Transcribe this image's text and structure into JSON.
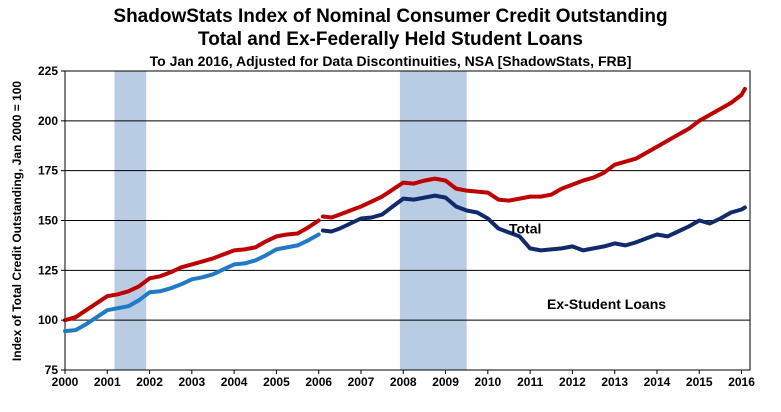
{
  "chart_data": {
    "type": "line",
    "title": "ShadowStats Index of Nominal Consumer Credit Outstanding",
    "subtitle": "Total and Ex-Federally Held Student Loans",
    "subtitle2": "To Jan 2016, Adjusted for Data Discontinuities, NSA [ShadowStats, FRB]",
    "ylabel": "Index of Total Credit Outstanding, Jan 2000 = 100",
    "xlabel": "",
    "xlim": [
      2000,
      2016.2
    ],
    "ylim": [
      75,
      225
    ],
    "yticks": [
      75,
      100,
      125,
      150,
      175,
      200,
      225
    ],
    "xticks": [
      "2000",
      "2001",
      "2002",
      "2003",
      "2004",
      "2005",
      "2006",
      "2007",
      "2008",
      "2009",
      "2010",
      "2011",
      "2012",
      "2013",
      "2014",
      "2015",
      "2016"
    ],
    "grid": true,
    "recessions": [
      [
        2001.17,
        2001.92
      ],
      [
        2007.92,
        2009.5
      ]
    ],
    "recession_color": "#b8cce4",
    "annotations": [
      {
        "text": "Total",
        "x": 2010.5,
        "y": 143.5
      },
      {
        "text": "Ex-Student Loans",
        "x": 2011.4,
        "y": 105.5
      }
    ],
    "series": [
      {
        "name": "Total (early)",
        "color": "#c00000",
        "x": [
          2000.0,
          2000.25,
          2000.5,
          2000.75,
          2001.0,
          2001.25,
          2001.5,
          2001.75,
          2002.0,
          2002.25,
          2002.5,
          2002.75,
          2003.0,
          2003.25,
          2003.5,
          2003.75,
          2004.0,
          2004.25,
          2004.5,
          2004.75,
          2005.0,
          2005.25,
          2005.5,
          2005.75,
          2006.0
        ],
        "y": [
          100,
          101.5,
          105,
          108.5,
          112,
          113,
          114.5,
          117,
          121,
          122,
          124,
          126.5,
          128,
          129.5,
          131,
          133,
          135,
          135.5,
          136.5,
          139.5,
          142,
          143,
          143.5,
          146.5,
          150
        ]
      },
      {
        "name": "Total (late)",
        "color": "#c00000",
        "x": [
          2006.1,
          2006.3,
          2006.5,
          2006.75,
          2007.0,
          2007.25,
          2007.5,
          2007.75,
          2008.0,
          2008.25,
          2008.5,
          2008.75,
          2009.0,
          2009.25,
          2009.5,
          2009.75,
          2010.0,
          2010.25,
          2010.5,
          2010.75,
          2011.0,
          2011.25,
          2011.5,
          2011.75,
          2012.0,
          2012.25,
          2012.5,
          2012.75,
          2013.0,
          2013.25,
          2013.5,
          2013.75,
          2014.0,
          2014.25,
          2014.5,
          2014.75,
          2015.0,
          2015.25,
          2015.5,
          2015.75,
          2016.0,
          2016.08
        ],
        "y": [
          152,
          151.5,
          153,
          155,
          157,
          159.5,
          162,
          165.5,
          169,
          168.5,
          170,
          171,
          170,
          166,
          165,
          164.5,
          164,
          160.5,
          160,
          161,
          162,
          162,
          163,
          166,
          168,
          170,
          171.5,
          174,
          178,
          179.5,
          181,
          184,
          187,
          190,
          193,
          196,
          200,
          203,
          206,
          209,
          213,
          216
        ]
      },
      {
        "name": "Ex-Student Loans (early)",
        "color": "#1f7ac8",
        "x": [
          2000.0,
          2000.25,
          2000.5,
          2000.75,
          2001.0,
          2001.25,
          2001.5,
          2001.75,
          2002.0,
          2002.25,
          2002.5,
          2002.75,
          2003.0,
          2003.25,
          2003.5,
          2003.75,
          2004.0,
          2004.25,
          2004.5,
          2004.75,
          2005.0,
          2005.25,
          2005.5,
          2005.75,
          2006.0
        ],
        "y": [
          94.5,
          95,
          98,
          101.5,
          105,
          106,
          107,
          110,
          114,
          114.5,
          116,
          118,
          120.5,
          121.5,
          123,
          125.5,
          128,
          128.5,
          130,
          132.5,
          135.5,
          136.5,
          137.5,
          140,
          143
        ]
      },
      {
        "name": "Ex-Student Loans (late)",
        "color": "#102a6e",
        "x": [
          2006.1,
          2006.3,
          2006.5,
          2006.75,
          2007.0,
          2007.25,
          2007.5,
          2007.75,
          2008.0,
          2008.25,
          2008.5,
          2008.75,
          2009.0,
          2009.25,
          2009.5,
          2009.75,
          2010.0,
          2010.25,
          2010.5,
          2010.75,
          2011.0,
          2011.25,
          2011.5,
          2011.75,
          2012.0,
          2012.25,
          2012.5,
          2012.75,
          2013.0,
          2013.25,
          2013.5,
          2013.75,
          2014.0,
          2014.25,
          2014.5,
          2014.75,
          2015.0,
          2015.25,
          2015.5,
          2015.75,
          2016.0,
          2016.08
        ],
        "y": [
          145,
          144.5,
          146,
          148.5,
          151,
          151.5,
          153,
          157,
          161,
          160.5,
          161.5,
          162.5,
          161.5,
          157,
          155,
          154,
          151,
          146,
          144,
          142,
          136,
          135,
          135.5,
          136,
          137,
          135,
          136,
          137,
          138.5,
          137.5,
          139,
          141,
          143,
          142,
          144.5,
          147,
          150,
          148.5,
          151,
          154,
          155.5,
          156.5
        ]
      }
    ]
  }
}
